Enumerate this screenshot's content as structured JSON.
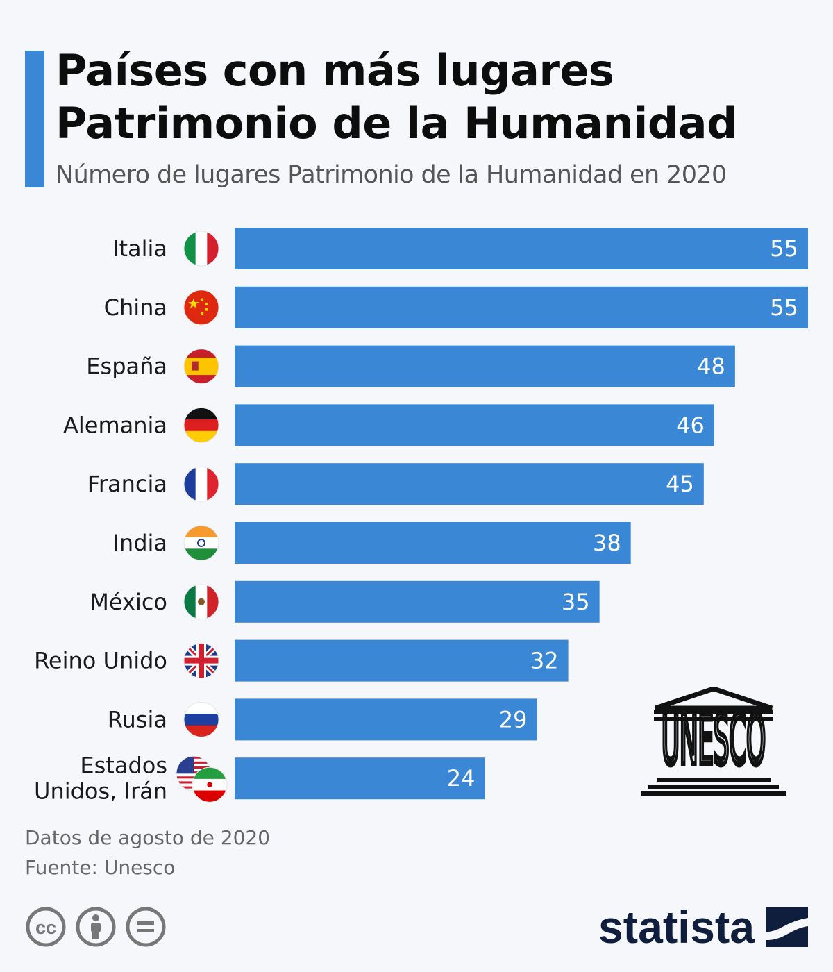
{
  "header": {
    "title": "Países con más lugares\nPatrimonio de la Humanidad",
    "subtitle": "Número de lugares Patrimonio de la Humanidad en 2020"
  },
  "footer": {
    "note": "Datos de agosto de 2020",
    "source": "Fuente: Unesco",
    "brand": "statista",
    "license_icons": [
      "cc-icon",
      "person-icon",
      "equals-icon"
    ]
  },
  "logo": {
    "name": "unesco-logo",
    "text": "UNESCO"
  },
  "colors": {
    "bar": "#3a87d6",
    "accent": "#3a87d6",
    "label_text": "#1a1a1a",
    "value_text": "#ffffff",
    "brand": "#0e1e3c"
  },
  "chart_data": {
    "type": "bar",
    "orientation": "horizontal",
    "categories": [
      "Italia",
      "China",
      "España",
      "Alemania",
      "Francia",
      "India",
      "México",
      "Reino Unido",
      "Rusia",
      "Estados\nUnidos, Irán"
    ],
    "flags": [
      "italy-flag-icon",
      "china-flag-icon",
      "spain-flag-icon",
      "germany-flag-icon",
      "france-flag-icon",
      "india-flag-icon",
      "mexico-flag-icon",
      "uk-flag-icon",
      "russia-flag-icon",
      "usa-iran-flag-icon"
    ],
    "values": [
      55,
      55,
      48,
      46,
      45,
      38,
      35,
      32,
      29,
      24
    ],
    "xlim": [
      0,
      55
    ],
    "grid": false,
    "legend": "none"
  }
}
